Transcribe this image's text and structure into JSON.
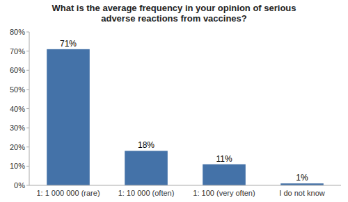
{
  "chart_data": {
    "type": "bar",
    "title": "What is the average frequency in your opinion of serious\nadverse reactions from vaccines?",
    "categories": [
      "1: 1 000 000 (rare)",
      "1: 10 000 (often)",
      "1: 100 (very often)",
      "I do not know"
    ],
    "values": [
      71,
      18,
      11,
      1
    ],
    "value_labels": [
      "71%",
      "18%",
      "11%",
      "1%"
    ],
    "data_labels": true,
    "color": "#4472a8",
    "ylim": [
      0,
      80
    ],
    "yticks": [
      {
        "value": 0,
        "label": "0%"
      },
      {
        "value": 10,
        "label": "10%"
      },
      {
        "value": 20,
        "label": "20%"
      },
      {
        "value": 30,
        "label": "30%"
      },
      {
        "value": 40,
        "label": "40%"
      },
      {
        "value": 50,
        "label": "50%"
      },
      {
        "value": 60,
        "label": "60%"
      },
      {
        "value": 70,
        "label": "70%"
      },
      {
        "value": 80,
        "label": "80%"
      }
    ],
    "grid": false
  }
}
